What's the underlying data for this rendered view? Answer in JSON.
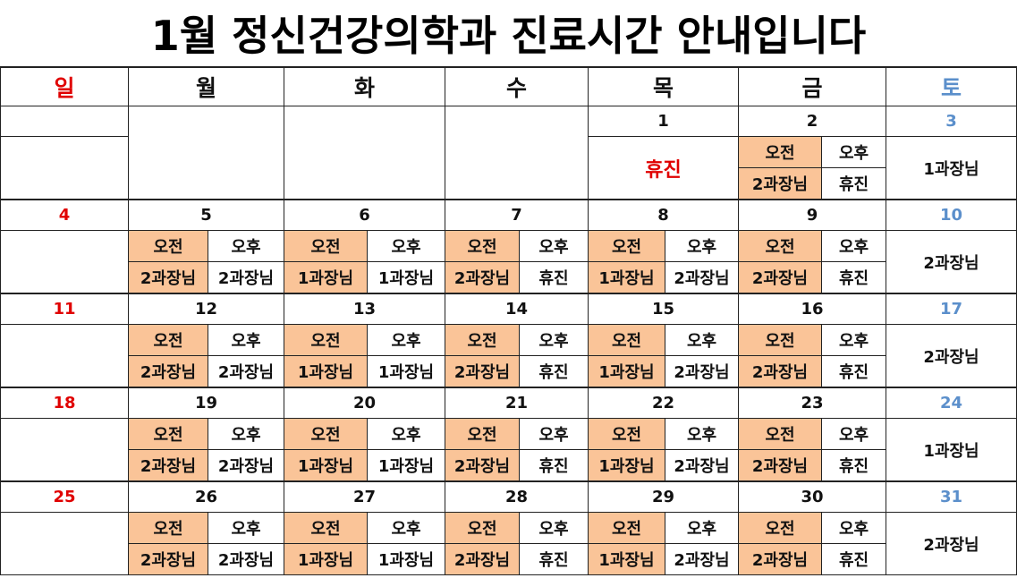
{
  "title": "1월 정신건강의학과 진료시간 안내입니다",
  "weekdays": [
    "일",
    "월",
    "화",
    "수",
    "목",
    "금",
    "토"
  ],
  "slot_labels": [
    "오전",
    "오후"
  ],
  "weeks": [
    {
      "days": [
        null,
        null,
        null,
        null,
        {
          "date": 1,
          "note": "휴진"
        },
        {
          "date": 2,
          "am": "2과장님",
          "pm": "휴진"
        },
        {
          "date": 3,
          "note": "1과장님"
        }
      ]
    },
    {
      "days": [
        {
          "date": 4
        },
        {
          "date": 5,
          "am": "2과장님",
          "pm": "2과장님"
        },
        {
          "date": 6,
          "am": "1과장님",
          "pm": "1과장님"
        },
        {
          "date": 7,
          "am": "2과장님",
          "pm": "휴진"
        },
        {
          "date": 8,
          "am": "1과장님",
          "pm": "2과장님"
        },
        {
          "date": 9,
          "am": "2과장님",
          "pm": "휴진"
        },
        {
          "date": 10,
          "note": "2과장님"
        }
      ]
    },
    {
      "days": [
        {
          "date": 11
        },
        {
          "date": 12,
          "am": "2과장님",
          "pm": "2과장님"
        },
        {
          "date": 13,
          "am": "1과장님",
          "pm": "1과장님"
        },
        {
          "date": 14,
          "am": "2과장님",
          "pm": "휴진"
        },
        {
          "date": 15,
          "am": "1과장님",
          "pm": "2과장님"
        },
        {
          "date": 16,
          "am": "2과장님",
          "pm": "휴진"
        },
        {
          "date": 17,
          "note": "2과장님"
        }
      ]
    },
    {
      "days": [
        {
          "date": 18
        },
        {
          "date": 19,
          "am": "2과장님",
          "pm": "2과장님"
        },
        {
          "date": 20,
          "am": "1과장님",
          "pm": "1과장님"
        },
        {
          "date": 21,
          "am": "2과장님",
          "pm": "휴진"
        },
        {
          "date": 22,
          "am": "1과장님",
          "pm": "2과장님"
        },
        {
          "date": 23,
          "am": "2과장님",
          "pm": "휴진"
        },
        {
          "date": 24,
          "note": "1과장님"
        }
      ]
    },
    {
      "days": [
        {
          "date": 25
        },
        {
          "date": 26,
          "am": "2과장님",
          "pm": "2과장님"
        },
        {
          "date": 27,
          "am": "1과장님",
          "pm": "1과장님"
        },
        {
          "date": 28,
          "am": "2과장님",
          "pm": "휴진"
        },
        {
          "date": 29,
          "am": "1과장님",
          "pm": "2과장님"
        },
        {
          "date": 30,
          "am": "2과장님",
          "pm": "휴진"
        },
        {
          "date": 31,
          "note": "2과장님"
        }
      ]
    }
  ]
}
